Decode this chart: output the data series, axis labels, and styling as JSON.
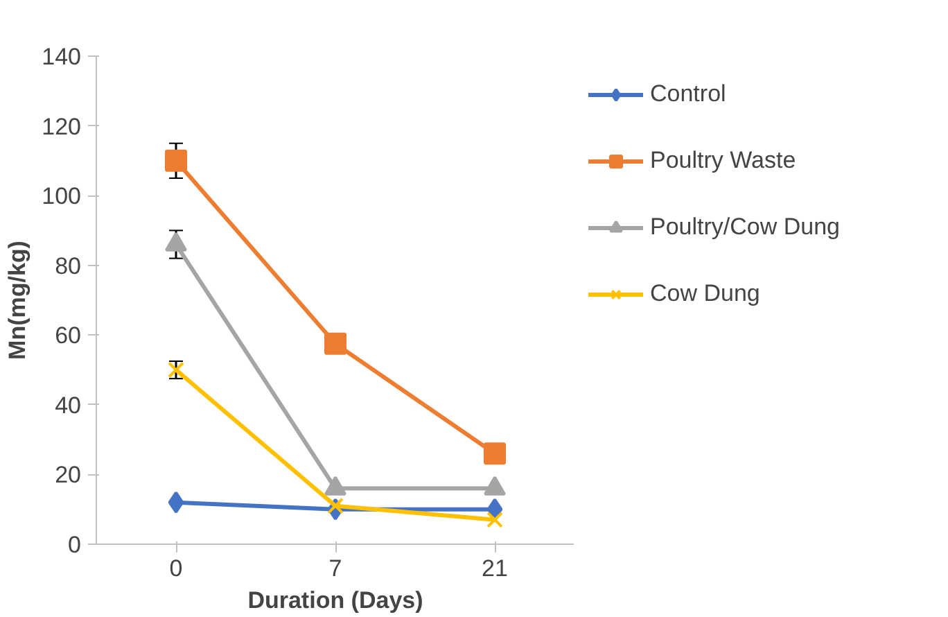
{
  "chart_data": {
    "type": "line",
    "xlabel": "Duration (Days)",
    "ylabel": "Mn(mg/kg)",
    "categories": [
      "0",
      "7",
      "21"
    ],
    "ylim": [
      0,
      140
    ],
    "yticks": [
      0,
      20,
      40,
      60,
      80,
      100,
      120,
      140
    ],
    "grid": false,
    "legend": "right",
    "series": [
      {
        "name": "Control",
        "color": "#4472c4",
        "marker": "diamond",
        "values": [
          12,
          10,
          10
        ]
      },
      {
        "name": "Poultry Waste",
        "color": "#ed7d31",
        "marker": "square",
        "values": [
          110,
          57.5,
          26
        ],
        "errors": [
          5,
          null,
          null
        ]
      },
      {
        "name": "Poultry/Cow Dung",
        "color": "#a5a5a5",
        "marker": "triangle",
        "values": [
          86,
          16,
          16
        ],
        "errors": [
          4,
          null,
          null
        ]
      },
      {
        "name": "Cow Dung",
        "color": "#ffc000",
        "marker": "cross",
        "values": [
          50,
          11,
          7
        ],
        "errors": [
          2.5,
          null,
          null
        ]
      }
    ]
  }
}
